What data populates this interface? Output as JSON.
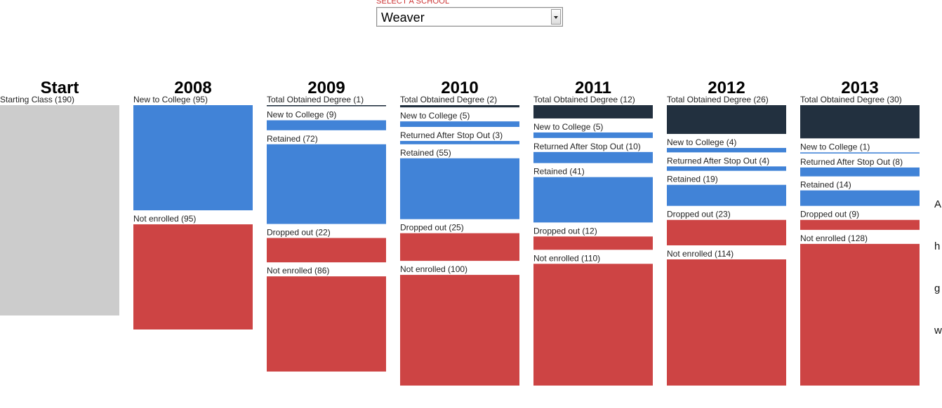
{
  "selector": {
    "label": "SELECT A SCHOOL",
    "selected": "Weaver"
  },
  "side_note_lines": [
    "A",
    "h",
    "g",
    "w"
  ],
  "colors": {
    "start": "#cccccc",
    "new": "#4183d7",
    "retained": "#4183d7",
    "returned": "#4183d7",
    "degree": "#22303f",
    "dropped": "#cd4444",
    "not_enrolled": "#cd4444"
  },
  "chart_data": {
    "type": "flow-stacked-bar",
    "columns": [
      {
        "title": "Start",
        "segments": [
          {
            "label": "Starting Class",
            "value": 190,
            "kind": "start"
          }
        ]
      },
      {
        "title": "2008",
        "segments": [
          {
            "label": "New to College",
            "value": 95,
            "kind": "new"
          },
          {
            "label": "Not enrolled",
            "value": 95,
            "kind": "not_enrolled"
          }
        ]
      },
      {
        "title": "2009",
        "segments": [
          {
            "label": "Total Obtained Degree",
            "value": 1,
            "kind": "degree"
          },
          {
            "label": "New to College",
            "value": 9,
            "kind": "new"
          },
          {
            "label": "Retained",
            "value": 72,
            "kind": "retained"
          },
          {
            "label": "Dropped out",
            "value": 22,
            "kind": "dropped"
          },
          {
            "label": "Not enrolled",
            "value": 86,
            "kind": "not_enrolled"
          }
        ]
      },
      {
        "title": "2010",
        "segments": [
          {
            "label": "Total Obtained Degree",
            "value": 2,
            "kind": "degree"
          },
          {
            "label": "New to College",
            "value": 5,
            "kind": "new"
          },
          {
            "label": "Returned After Stop Out",
            "value": 3,
            "kind": "returned"
          },
          {
            "label": "Retained",
            "value": 55,
            "kind": "retained"
          },
          {
            "label": "Dropped out",
            "value": 25,
            "kind": "dropped"
          },
          {
            "label": "Not enrolled",
            "value": 100,
            "kind": "not_enrolled"
          }
        ]
      },
      {
        "title": "2011",
        "segments": [
          {
            "label": "Total Obtained Degree",
            "value": 12,
            "kind": "degree"
          },
          {
            "label": "New to College",
            "value": 5,
            "kind": "new"
          },
          {
            "label": "Returned After Stop Out",
            "value": 10,
            "kind": "returned"
          },
          {
            "label": "Retained",
            "value": 41,
            "kind": "retained"
          },
          {
            "label": "Dropped out",
            "value": 12,
            "kind": "dropped"
          },
          {
            "label": "Not enrolled",
            "value": 110,
            "kind": "not_enrolled"
          }
        ]
      },
      {
        "title": "2012",
        "segments": [
          {
            "label": "Total Obtained Degree",
            "value": 26,
            "kind": "degree"
          },
          {
            "label": "New to College",
            "value": 4,
            "kind": "new"
          },
          {
            "label": "Returned After Stop Out",
            "value": 4,
            "kind": "returned"
          },
          {
            "label": "Retained",
            "value": 19,
            "kind": "retained"
          },
          {
            "label": "Dropped out",
            "value": 23,
            "kind": "dropped"
          },
          {
            "label": "Not enrolled",
            "value": 114,
            "kind": "not_enrolled"
          }
        ]
      },
      {
        "title": "2013",
        "segments": [
          {
            "label": "Total Obtained Degree",
            "value": 30,
            "kind": "degree"
          },
          {
            "label": "New to College",
            "value": 1,
            "kind": "new"
          },
          {
            "label": "Returned After Stop Out",
            "value": 8,
            "kind": "returned"
          },
          {
            "label": "Retained",
            "value": 14,
            "kind": "retained"
          },
          {
            "label": "Dropped out",
            "value": 9,
            "kind": "dropped"
          },
          {
            "label": "Not enrolled",
            "value": 128,
            "kind": "not_enrolled"
          }
        ]
      }
    ]
  }
}
